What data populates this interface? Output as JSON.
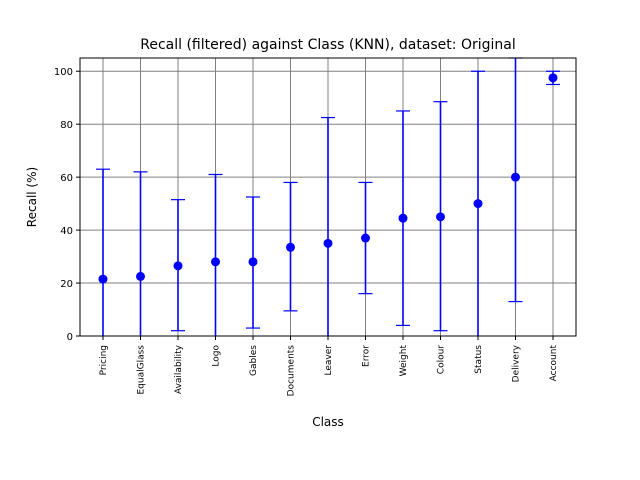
{
  "chart_data": {
    "type": "scatter",
    "title": "Recall (filtered) against Class (KNN), dataset: Original",
    "xlabel": "Class",
    "ylabel": "Recall (%)",
    "ylim": [
      0,
      105
    ],
    "yticks": [
      "0",
      "20",
      "40",
      "60",
      "80",
      "100"
    ],
    "grid": true,
    "categories": [
      "Pricing",
      "EqualGlass",
      "Availability",
      "Logo",
      "Gables",
      "Documents",
      "Leaver",
      "Error",
      "Weight",
      "Colour",
      "Status",
      "Delivery",
      "Account"
    ],
    "values": [
      21.5,
      22.5,
      26.5,
      28,
      28,
      33.5,
      35,
      37,
      44.5,
      45,
      50,
      60,
      97.5
    ],
    "error_low": [
      0,
      0,
      2,
      0,
      3,
      9.5,
      0,
      16,
      4,
      2,
      0,
      13,
      95
    ],
    "error_high": [
      63,
      62,
      51.5,
      61,
      52.5,
      58,
      82.5,
      58,
      85,
      88.5,
      100,
      105,
      100
    ],
    "marker_color": "#0000ff",
    "grid_color": "#808080"
  }
}
